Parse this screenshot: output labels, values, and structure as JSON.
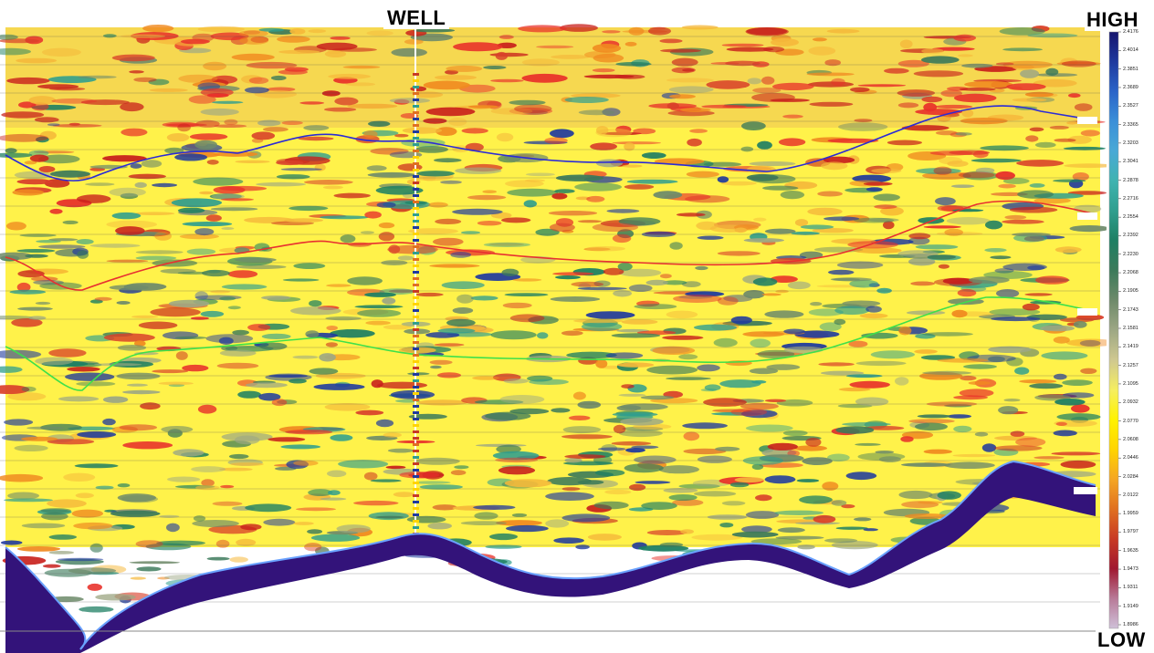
{
  "labels": {
    "well": "WELL",
    "high": "HIGH",
    "low": "LOW"
  },
  "colorbar": {
    "ticks": [
      "2.4176",
      "2.4014",
      "2.3851",
      "2.3689",
      "2.3527",
      "2.3365",
      "2.3203",
      "2.3041",
      "2.2878",
      "2.2716",
      "2.2554",
      "2.2392",
      "2.2230",
      "2.2068",
      "2.1905",
      "2.1743",
      "2.1581",
      "2.1419",
      "2.1257",
      "2.1095",
      "2.0932",
      "2.0770",
      "2.0608",
      "2.0446",
      "2.0284",
      "2.0122",
      "1.9959",
      "1.9797",
      "1.9635",
      "1.9473",
      "1.9311",
      "1.9149",
      "1.8986"
    ],
    "colors": [
      "#15156e",
      "#1f3a9e",
      "#2a64c8",
      "#3b8fd8",
      "#49a9d6",
      "#3fb3b0",
      "#2f9e8e",
      "#1f7f63",
      "#3c7a5a",
      "#6e8a6a",
      "#9da784",
      "#cfc890",
      "#f5ee60",
      "#fff200",
      "#ffd400",
      "#f5a623",
      "#e07020",
      "#c83a24",
      "#a01830",
      "#b87a98",
      "#cfc0d8"
    ]
  },
  "horizons": [
    {
      "name": "blue-horizon",
      "color": "#2b2bd6"
    },
    {
      "name": "red-horizon",
      "color": "#e83030"
    },
    {
      "name": "green-horizon",
      "color": "#3ee04a"
    }
  ],
  "seabed": {
    "fill": "#33137a",
    "edge": "#6aa2ff"
  },
  "well": {
    "color": "#ffffff"
  }
}
